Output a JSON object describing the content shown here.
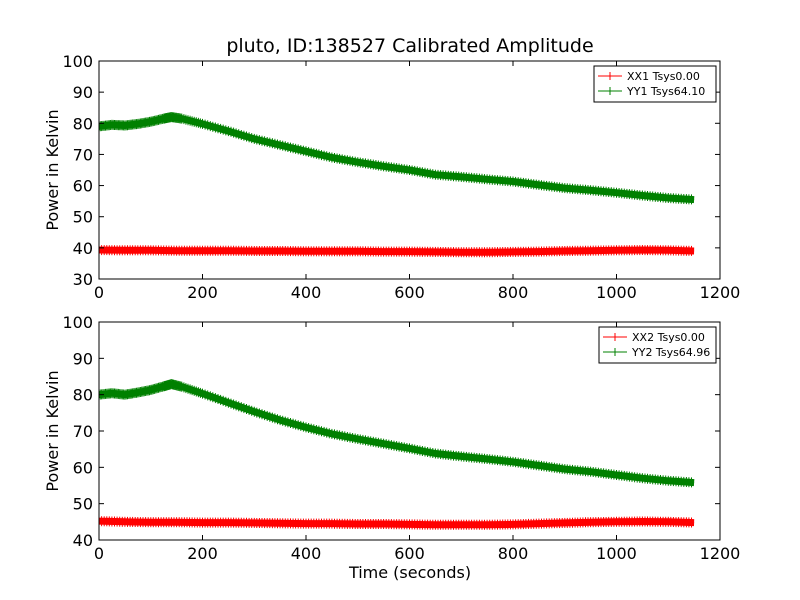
{
  "figure": {
    "title": "pluto, ID:138527 Calibrated Amplitude",
    "xlabel": "Time (seconds)"
  },
  "chart_data": [
    {
      "type": "line",
      "title": "pluto, ID:138527 Calibrated Amplitude",
      "xlabel": "",
      "ylabel": "Power in Kelvin",
      "xlim": [
        0,
        1200
      ],
      "ylim": [
        30,
        100
      ],
      "xticks": [
        0,
        200,
        400,
        600,
        800,
        1000,
        1200
      ],
      "yticks": [
        30,
        40,
        50,
        60,
        70,
        80,
        90,
        100
      ],
      "grid": false,
      "legend_position": "top-right",
      "series": [
        {
          "name": "XX1 Tsys0.00",
          "color": "#ff0000",
          "x": [
            0,
            50,
            100,
            150,
            200,
            250,
            300,
            350,
            400,
            450,
            500,
            550,
            600,
            650,
            700,
            750,
            800,
            850,
            900,
            950,
            1000,
            1050,
            1100,
            1150
          ],
          "y": [
            39.3,
            39.2,
            39.2,
            39.1,
            39.1,
            39.1,
            39.0,
            39.0,
            38.9,
            38.9,
            38.9,
            38.8,
            38.8,
            38.7,
            38.6,
            38.6,
            38.7,
            38.8,
            39.0,
            39.1,
            39.2,
            39.3,
            39.2,
            39.0
          ]
        },
        {
          "name": "YY1 Tsys64.10",
          "color": "#008000",
          "x": [
            0,
            25,
            50,
            75,
            100,
            125,
            140,
            160,
            200,
            250,
            300,
            350,
            400,
            450,
            500,
            550,
            600,
            650,
            700,
            750,
            800,
            850,
            900,
            950,
            1000,
            1050,
            1100,
            1150
          ],
          "y": [
            79.0,
            79.5,
            79.3,
            79.8,
            80.5,
            81.5,
            82.0,
            81.5,
            79.8,
            77.5,
            75.0,
            73.0,
            71.0,
            69.0,
            67.5,
            66.2,
            65.0,
            63.5,
            62.8,
            62.0,
            61.3,
            60.2,
            59.2,
            58.5,
            57.7,
            56.8,
            56.0,
            55.5
          ]
        }
      ]
    },
    {
      "type": "line",
      "xlabel": "Time (seconds)",
      "ylabel": "Power in Kelvin",
      "xlim": [
        0,
        1200
      ],
      "ylim": [
        40,
        100
      ],
      "xticks": [
        0,
        200,
        400,
        600,
        800,
        1000,
        1200
      ],
      "yticks": [
        40,
        50,
        60,
        70,
        80,
        90,
        100
      ],
      "grid": false,
      "legend_position": "top-right",
      "series": [
        {
          "name": "XX2 Tsys0.00",
          "color": "#ff0000",
          "x": [
            0,
            50,
            100,
            150,
            200,
            250,
            300,
            350,
            400,
            450,
            500,
            550,
            600,
            650,
            700,
            750,
            800,
            850,
            900,
            950,
            1000,
            1050,
            1100,
            1150
          ],
          "y": [
            45.2,
            45.0,
            44.9,
            44.9,
            44.8,
            44.8,
            44.7,
            44.6,
            44.5,
            44.5,
            44.4,
            44.4,
            44.3,
            44.2,
            44.2,
            44.2,
            44.3,
            44.5,
            44.7,
            44.9,
            45.0,
            45.1,
            45.0,
            44.8
          ]
        },
        {
          "name": "YY2 Tsys64.96",
          "color": "#008000",
          "x": [
            0,
            25,
            50,
            75,
            100,
            125,
            140,
            160,
            200,
            250,
            300,
            350,
            400,
            450,
            500,
            550,
            600,
            650,
            700,
            750,
            800,
            850,
            900,
            950,
            1000,
            1050,
            1100,
            1150
          ],
          "y": [
            80.0,
            80.4,
            80.0,
            80.6,
            81.3,
            82.3,
            82.9,
            82.2,
            80.3,
            77.8,
            75.3,
            73.0,
            71.0,
            69.2,
            67.8,
            66.5,
            65.2,
            63.8,
            63.0,
            62.3,
            61.5,
            60.5,
            59.5,
            58.8,
            57.9,
            57.0,
            56.3,
            55.8
          ]
        }
      ]
    }
  ]
}
